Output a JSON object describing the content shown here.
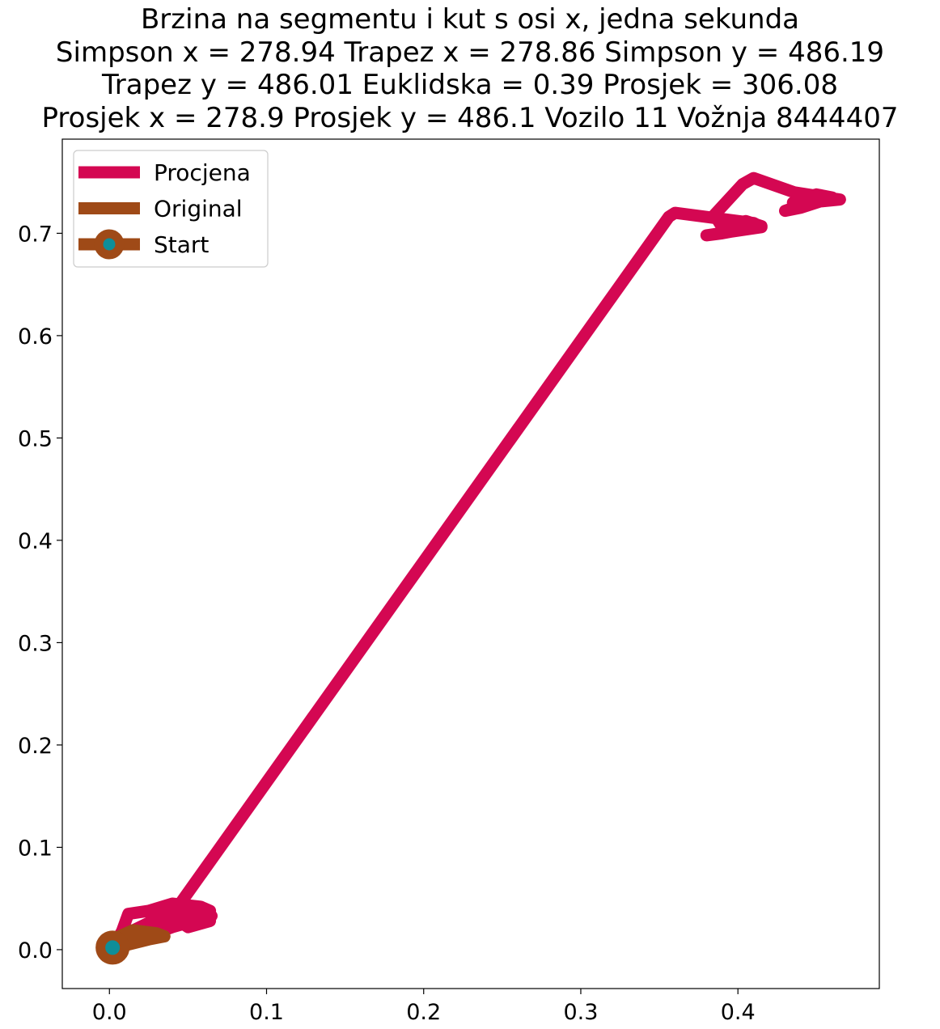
{
  "chart_data": {
    "type": "line",
    "title_lines": [
      "Brzina na segmentu i kut s osi x, jedna sekunda",
      "Simpson x = 278.94 Trapez x = 278.86 Simpson y = 486.19",
      "Trapez y = 486.01 Euklidska = 0.39 Prosjek = 306.08",
      "Prosjek x = 278.9 Prosjek y = 486.1 Vozilo 11 Vožnja 8444407"
    ],
    "xlabel": "",
    "ylabel": "",
    "xlim": [
      -0.03,
      0.49
    ],
    "ylim": [
      -0.038,
      0.792
    ],
    "x_ticks": [
      0.0,
      0.1,
      0.2,
      0.3,
      0.4
    ],
    "x_tick_labels": [
      "0.0",
      "0.1",
      "0.2",
      "0.3",
      "0.4"
    ],
    "y_ticks": [
      0.0,
      0.1,
      0.2,
      0.3,
      0.4,
      0.5,
      0.6,
      0.7
    ],
    "y_tick_labels": [
      "0.0",
      "0.1",
      "0.2",
      "0.3",
      "0.4",
      "0.5",
      "0.6",
      "0.7"
    ],
    "grid": false,
    "legend_position": "top-left",
    "series": [
      {
        "name": "Procjena",
        "color": "#d40752",
        "x": [
          0.002,
          0.008,
          0.012,
          0.025,
          0.04,
          0.058,
          0.064,
          0.03,
          0.01,
          0.035,
          0.055,
          0.065,
          0.04,
          0.015,
          0.004,
          0.02,
          0.045,
          0.064,
          0.05,
          0.038,
          0.045,
          0.356,
          0.36,
          0.41,
          0.415,
          0.38,
          0.39,
          0.415,
          0.405,
          0.39,
          0.385,
          0.403,
          0.41,
          0.436,
          0.465,
          0.445,
          0.43,
          0.44,
          0.46,
          0.45,
          0.435,
          0.44
        ],
        "y": [
          0.002,
          0.018,
          0.035,
          0.038,
          0.045,
          0.042,
          0.038,
          0.03,
          0.015,
          0.025,
          0.038,
          0.033,
          0.022,
          0.008,
          0.012,
          0.02,
          0.026,
          0.028,
          0.022,
          0.035,
          0.045,
          0.716,
          0.72,
          0.71,
          0.706,
          0.698,
          0.7,
          0.707,
          0.712,
          0.706,
          0.718,
          0.748,
          0.754,
          0.74,
          0.733,
          0.73,
          0.722,
          0.725,
          0.735,
          0.738,
          0.73,
          0.726
        ]
      },
      {
        "name": "Original",
        "color": "#9f4a17",
        "x": [
          0.002,
          0.012,
          0.025,
          0.035,
          0.03,
          0.015,
          0.005,
          0.012,
          0.03,
          0.02,
          0.008,
          0.003
        ],
        "y": [
          0.002,
          0.005,
          0.01,
          0.013,
          0.016,
          0.019,
          0.012,
          0.008,
          0.013,
          0.016,
          0.01,
          0.004
        ]
      }
    ],
    "start": {
      "name": "Start",
      "x": 0.002,
      "y": 0.002,
      "color": "#9f4a17",
      "marker_color": "#0e8e99"
    }
  }
}
